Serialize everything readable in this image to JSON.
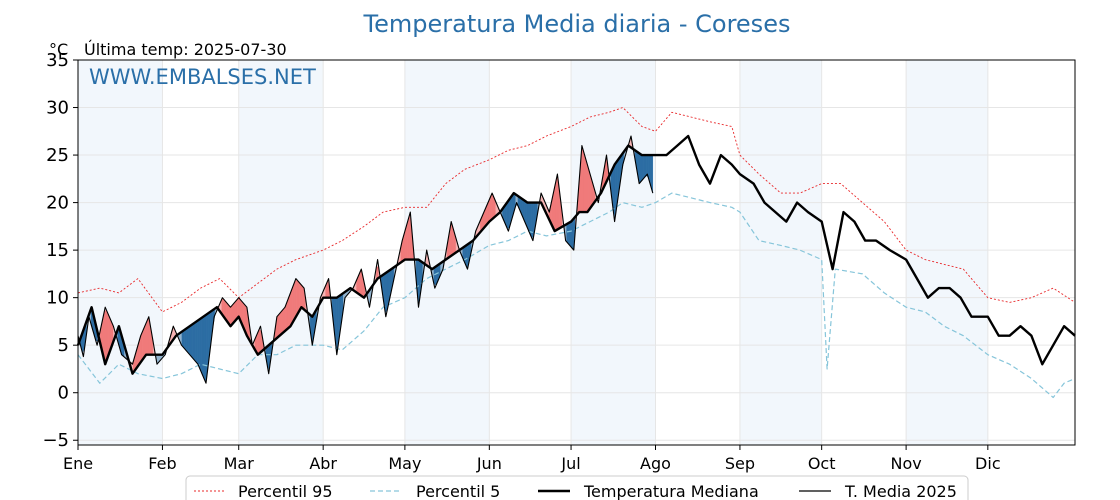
{
  "chart_data": {
    "type": "line",
    "title": "Temperatura Media diaria - Coreses",
    "unit": "°C",
    "subtitle": "Última temp: 2025-07-30",
    "watermark": "WWW.EMBALSES.NET",
    "ylim": [
      -5.5,
      35
    ],
    "yticks": [
      -5,
      0,
      5,
      10,
      15,
      20,
      25,
      30,
      35
    ],
    "ytick_labels": [
      "−5",
      "0",
      "5",
      "10",
      "15",
      "20",
      "25",
      "30",
      "35"
    ],
    "xlim": [
      0,
      366
    ],
    "months": [
      "Ene",
      "Feb",
      "Mar",
      "Abr",
      "May",
      "Jun",
      "Jul",
      "Ago",
      "Sep",
      "Oct",
      "Nov",
      "Dic"
    ],
    "month_starts": [
      0,
      31,
      59,
      90,
      120,
      151,
      181,
      212,
      243,
      273,
      304,
      334
    ],
    "grid": true,
    "legend_position": "bottom",
    "colors": {
      "p95": "#e8282a",
      "p5": "#86c5da",
      "median": "#000000",
      "year": "#000000",
      "above": "#f07a7a",
      "below": "#2c6da3",
      "above_light": "#f6b3b3",
      "below_light": "#93b4cf",
      "shade": "#f2f7fc",
      "title": "#2a6fa8"
    },
    "series": [
      {
        "name": "Percentil 95",
        "x": [
          0,
          8,
          15,
          22,
          31,
          38,
          45,
          52,
          59,
          66,
          73,
          80,
          90,
          97,
          105,
          112,
          120,
          128,
          135,
          142,
          151,
          158,
          165,
          172,
          181,
          188,
          195,
          200,
          207,
          212,
          218,
          225,
          232,
          240,
          243,
          250,
          258,
          265,
          273,
          280,
          288,
          296,
          304,
          311,
          318,
          325,
          334,
          342,
          350,
          358,
          366
        ],
        "values": [
          10.5,
          11,
          10.5,
          12,
          8.5,
          9.5,
          11,
          12,
          10,
          11.5,
          13,
          14,
          15,
          16,
          17.5,
          19,
          19.5,
          19.5,
          22,
          23.5,
          24.5,
          25.5,
          26,
          27,
          28,
          29,
          29.5,
          30,
          28,
          27.5,
          29.5,
          29,
          28.5,
          28,
          25,
          23,
          21,
          21,
          22,
          22,
          20,
          18,
          15,
          14,
          13.5,
          13,
          10,
          9.5,
          10,
          11,
          9.5
        ]
      },
      {
        "name": "Percentil 5",
        "x": [
          0,
          8,
          15,
          22,
          31,
          38,
          45,
          52,
          59,
          66,
          73,
          80,
          90,
          97,
          105,
          112,
          120,
          128,
          135,
          142,
          151,
          158,
          165,
          172,
          181,
          188,
          195,
          200,
          207,
          212,
          218,
          225,
          232,
          240,
          243,
          250,
          258,
          265,
          273,
          275,
          278,
          288,
          296,
          304,
          311,
          318,
          325,
          334,
          342,
          350,
          358,
          362,
          366
        ],
        "values": [
          4,
          1,
          3,
          2,
          1.5,
          2,
          3,
          2.5,
          2,
          4,
          4,
          5,
          5,
          4.5,
          6.5,
          9,
          10,
          12,
          13,
          14,
          15.5,
          16,
          17,
          16.5,
          17,
          18,
          19,
          20,
          19.5,
          20,
          21,
          20.5,
          20,
          19.5,
          19,
          16,
          15.5,
          15,
          14,
          2.5,
          13,
          12.5,
          10.5,
          9,
          8.5,
          7,
          6,
          4,
          3,
          1.5,
          -0.5,
          1,
          1.5
        ]
      },
      {
        "name": "Temperatura Mediana",
        "x": [
          0,
          5,
          10,
          15,
          20,
          25,
          31,
          36,
          41,
          46,
          51,
          56,
          59,
          62,
          66,
          70,
          74,
          78,
          82,
          86,
          90,
          95,
          100,
          105,
          110,
          115,
          120,
          125,
          130,
          135,
          140,
          145,
          151,
          155,
          160,
          165,
          170,
          175,
          181,
          184,
          187,
          192,
          197,
          202,
          207,
          212,
          216,
          220,
          224,
          228,
          232,
          236,
          240,
          243,
          248,
          252,
          256,
          260,
          264,
          268,
          273,
          277,
          281,
          285,
          289,
          293,
          298,
          304,
          308,
          312,
          316,
          320,
          324,
          328,
          334,
          338,
          342,
          346,
          350,
          354,
          358,
          362,
          366
        ],
        "values": [
          5,
          9,
          3,
          7,
          2,
          4,
          4,
          6,
          7,
          8,
          9,
          7,
          8,
          6,
          4,
          5,
          6,
          7,
          9,
          8,
          10,
          10,
          11,
          10,
          12,
          13,
          14,
          14,
          13,
          14,
          15,
          16,
          18,
          19,
          21,
          20,
          20,
          17,
          18,
          19,
          19,
          21,
          24,
          26,
          25,
          25,
          25,
          26,
          27,
          24,
          22,
          25,
          24,
          23,
          22,
          20,
          19,
          18,
          20,
          19,
          18,
          13,
          19,
          18,
          16,
          16,
          15,
          14,
          12,
          10,
          11,
          11,
          10,
          8,
          8,
          6,
          6,
          7,
          6,
          3,
          5,
          7,
          6
        ]
      },
      {
        "name": "T. Media 2025",
        "x": [
          0,
          2,
          4,
          7,
          10,
          13,
          16,
          20,
          23,
          26,
          29,
          32,
          35,
          38,
          41,
          44,
          47,
          50,
          53,
          56,
          59,
          62,
          64,
          67,
          70,
          73,
          76,
          80,
          83,
          86,
          89,
          92,
          95,
          98,
          101,
          104,
          107,
          110,
          113,
          116,
          119,
          122,
          125,
          128,
          131,
          134,
          137,
          140,
          143,
          146,
          149,
          152,
          155,
          158,
          161,
          164,
          167,
          170,
          173,
          176,
          179,
          182,
          185,
          188,
          191,
          194,
          197,
          200,
          203,
          206,
          209,
          211
        ],
        "values": [
          6,
          3.8,
          8,
          5,
          9,
          7,
          4,
          3,
          6,
          8,
          3,
          4,
          7,
          5,
          4,
          3,
          1,
          8,
          10,
          9,
          10,
          9,
          5,
          7,
          2,
          8,
          9,
          12,
          11,
          5,
          10,
          12,
          4,
          10,
          11,
          13,
          9,
          14,
          8,
          12,
          16,
          19,
          9,
          15,
          11,
          13,
          18,
          15,
          13,
          17,
          19,
          21,
          19,
          17,
          20,
          18,
          16,
          21,
          19,
          23,
          16,
          15,
          26,
          23,
          20,
          25,
          18,
          24,
          27,
          22,
          23,
          21
        ]
      }
    ],
    "fill_above_median_x": [
      0,
      15,
      23,
      31,
      38,
      46,
      56,
      65,
      75,
      86,
      95,
      100,
      106,
      113,
      124,
      135,
      141,
      153,
      160,
      170,
      178,
      180,
      186,
      194,
      201,
      209
    ],
    "fill_below_median_x": [
      3,
      8,
      15,
      27,
      41,
      50,
      70,
      73,
      80,
      92,
      99,
      116,
      121,
      131,
      146,
      185,
      197,
      204,
      209
    ]
  }
}
